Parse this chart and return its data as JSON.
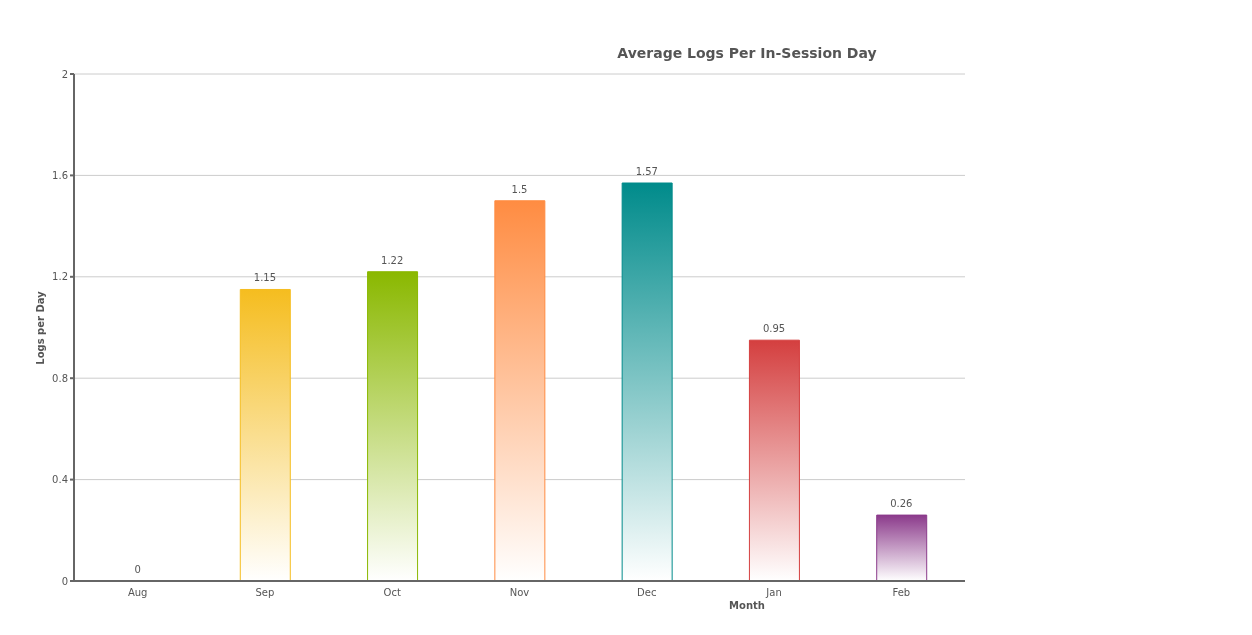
{
  "chart_data": {
    "type": "bar",
    "title": "Average Logs Per In-Session Day",
    "xlabel": "Month",
    "ylabel": "Logs per Day",
    "categories": [
      "Aug",
      "Sep",
      "Oct",
      "Nov",
      "Dec",
      "Jan",
      "Feb"
    ],
    "values": [
      0,
      1.15,
      1.22,
      1.5,
      1.57,
      0.95,
      0.26
    ],
    "colors": [
      "#999999",
      "#f5bd1f",
      "#8ab800",
      "#ff8c42",
      "#008b8b",
      "#d43f3f",
      "#8b3a8b"
    ],
    "ylim": [
      0,
      2
    ],
    "yticks": [
      0,
      0.4,
      0.8,
      1.2,
      1.6,
      2
    ],
    "grid": "y",
    "data_labels": true,
    "legend": false
  }
}
